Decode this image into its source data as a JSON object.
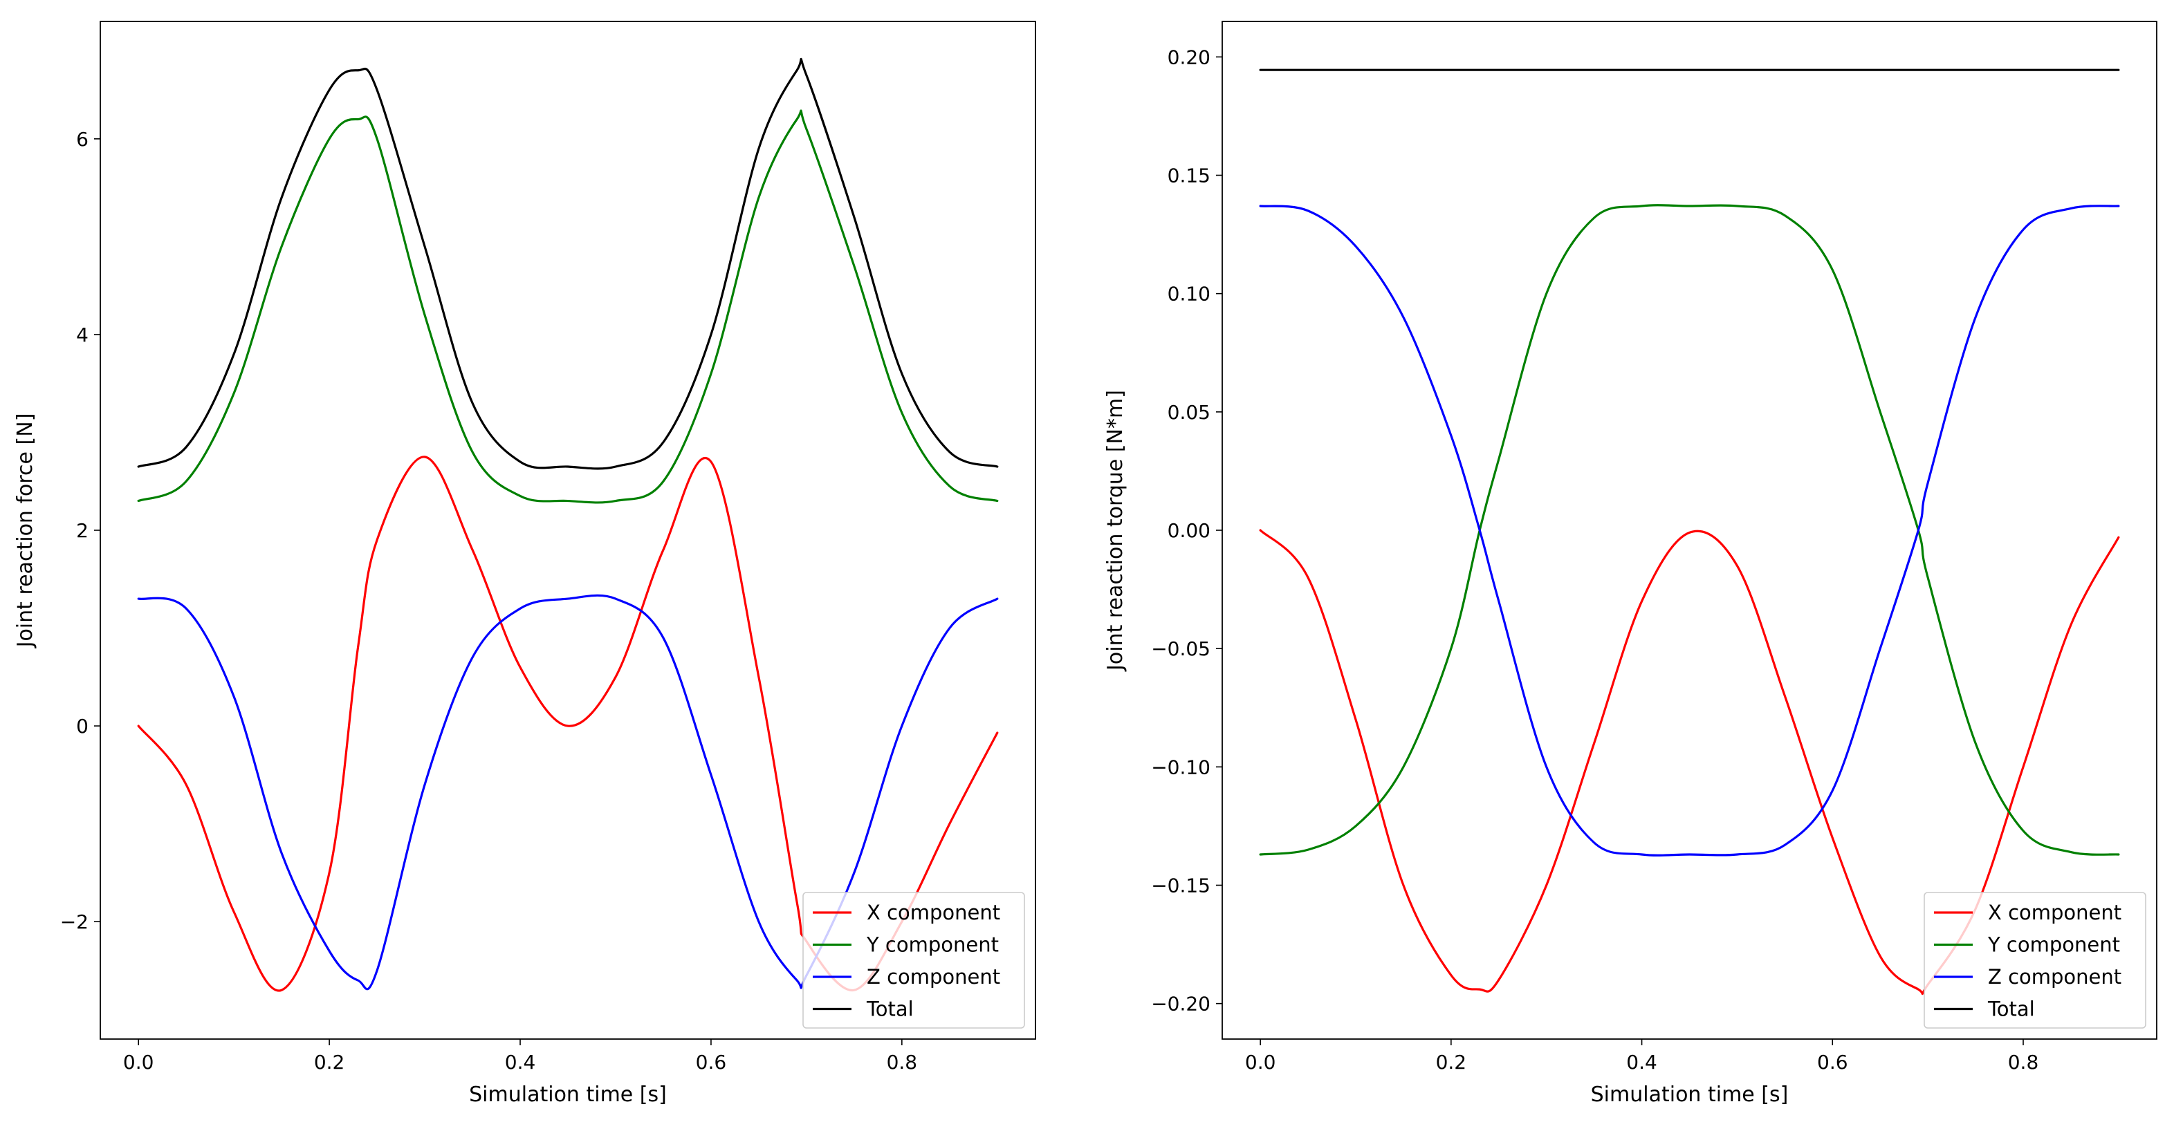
{
  "colors": {
    "x_component": "#ff0000",
    "y_component": "#008000",
    "z_component": "#0000ff",
    "total": "#000000"
  },
  "chart_data": [
    {
      "type": "line",
      "xlabel": "Simulation time [s]",
      "ylabel": "Joint reaction force [N]",
      "xlim": [
        -0.04,
        0.94
      ],
      "ylim": [
        -3.2,
        7.2
      ],
      "xticks": [
        0.0,
        0.2,
        0.4,
        0.6,
        0.8
      ],
      "xtick_labels": [
        "0.0",
        "0.2",
        "0.4",
        "0.6",
        "0.8"
      ],
      "yticks": [
        -2,
        0,
        2,
        4,
        6
      ],
      "ytick_labels": [
        "−2",
        "0",
        "2",
        "4",
        "6"
      ],
      "grid": false,
      "legend_position": "lower-right",
      "x": [
        0.0,
        0.05,
        0.1,
        0.15,
        0.2,
        0.23,
        0.25,
        0.3,
        0.35,
        0.4,
        0.45,
        0.5,
        0.55,
        0.6,
        0.65,
        0.69,
        0.7,
        0.75,
        0.8,
        0.85,
        0.9
      ],
      "series": [
        {
          "name": "X component",
          "color": "#ff0000",
          "values": [
            0.0,
            -0.6,
            -1.9,
            -2.7,
            -1.5,
            0.8,
            1.9,
            2.75,
            1.8,
            0.6,
            0.0,
            0.5,
            1.8,
            2.7,
            0.5,
            -1.8,
            -2.2,
            -2.7,
            -2.0,
            -1.0,
            -0.07
          ]
        },
        {
          "name": "Y component",
          "color": "#008000",
          "values": [
            2.3,
            2.5,
            3.4,
            4.9,
            6.0,
            6.2,
            6.0,
            4.2,
            2.8,
            2.35,
            2.3,
            2.3,
            2.5,
            3.6,
            5.4,
            6.2,
            6.1,
            4.7,
            3.2,
            2.45,
            2.3
          ]
        },
        {
          "name": "Z component",
          "color": "#0000ff",
          "values": [
            1.3,
            1.2,
            0.3,
            -1.3,
            -2.3,
            -2.6,
            -2.5,
            -0.6,
            0.7,
            1.2,
            1.3,
            1.3,
            0.9,
            -0.5,
            -2.0,
            -2.6,
            -2.55,
            -1.5,
            0.0,
            1.0,
            1.3
          ]
        },
        {
          "name": "Total",
          "color": "#000000",
          "values": [
            2.65,
            2.85,
            3.8,
            5.4,
            6.5,
            6.7,
            6.5,
            4.9,
            3.3,
            2.7,
            2.65,
            2.65,
            2.9,
            4.0,
            5.9,
            6.7,
            6.65,
            5.2,
            3.6,
            2.8,
            2.65
          ]
        }
      ]
    },
    {
      "type": "line",
      "xlabel": "Simulation time [s]",
      "ylabel": "Joint reaction torque [N*m]",
      "xlim": [
        -0.04,
        0.94
      ],
      "ylim": [
        -0.215,
        0.215
      ],
      "xticks": [
        0.0,
        0.2,
        0.4,
        0.6,
        0.8
      ],
      "xtick_labels": [
        "0.0",
        "0.2",
        "0.4",
        "0.6",
        "0.8"
      ],
      "yticks": [
        -0.2,
        -0.15,
        -0.1,
        -0.05,
        0.0,
        0.05,
        0.1,
        0.15,
        0.2
      ],
      "ytick_labels": [
        "−0.20",
        "−0.15",
        "−0.10",
        "−0.05",
        "0.00",
        "0.05",
        "0.10",
        "0.15",
        "0.20"
      ],
      "grid": false,
      "legend_position": "lower-right",
      "x": [
        0.0,
        0.05,
        0.1,
        0.15,
        0.2,
        0.23,
        0.25,
        0.3,
        0.35,
        0.4,
        0.45,
        0.5,
        0.55,
        0.6,
        0.65,
        0.69,
        0.7,
        0.75,
        0.8,
        0.85,
        0.9
      ],
      "series": [
        {
          "name": "X component",
          "color": "#ff0000",
          "values": [
            0.0,
            -0.02,
            -0.08,
            -0.15,
            -0.188,
            -0.194,
            -0.19,
            -0.15,
            -0.09,
            -0.03,
            -0.001,
            -0.015,
            -0.07,
            -0.13,
            -0.18,
            -0.194,
            -0.192,
            -0.16,
            -0.1,
            -0.04,
            -0.003
          ]
        },
        {
          "name": "Y component",
          "color": "#008000",
          "values": [
            -0.137,
            -0.135,
            -0.125,
            -0.1,
            -0.05,
            0.0,
            0.03,
            0.1,
            0.132,
            0.137,
            0.137,
            0.137,
            0.133,
            0.11,
            0.05,
            0.0,
            -0.02,
            -0.09,
            -0.127,
            -0.136,
            -0.137
          ]
        },
        {
          "name": "Z component",
          "color": "#0000ff",
          "values": [
            0.137,
            0.135,
            0.12,
            0.09,
            0.04,
            0.0,
            -0.03,
            -0.1,
            -0.132,
            -0.137,
            -0.137,
            -0.137,
            -0.133,
            -0.11,
            -0.05,
            0.0,
            0.02,
            0.09,
            0.127,
            0.136,
            0.137
          ]
        },
        {
          "name": "Total",
          "color": "#000000",
          "values": [
            0.1945,
            0.1945,
            0.1945,
            0.1945,
            0.1945,
            0.1945,
            0.1945,
            0.1945,
            0.1945,
            0.1945,
            0.1945,
            0.1945,
            0.1945,
            0.1945,
            0.1945,
            0.1945,
            0.1945,
            0.1945,
            0.1945,
            0.1945,
            0.1945
          ]
        }
      ]
    }
  ]
}
